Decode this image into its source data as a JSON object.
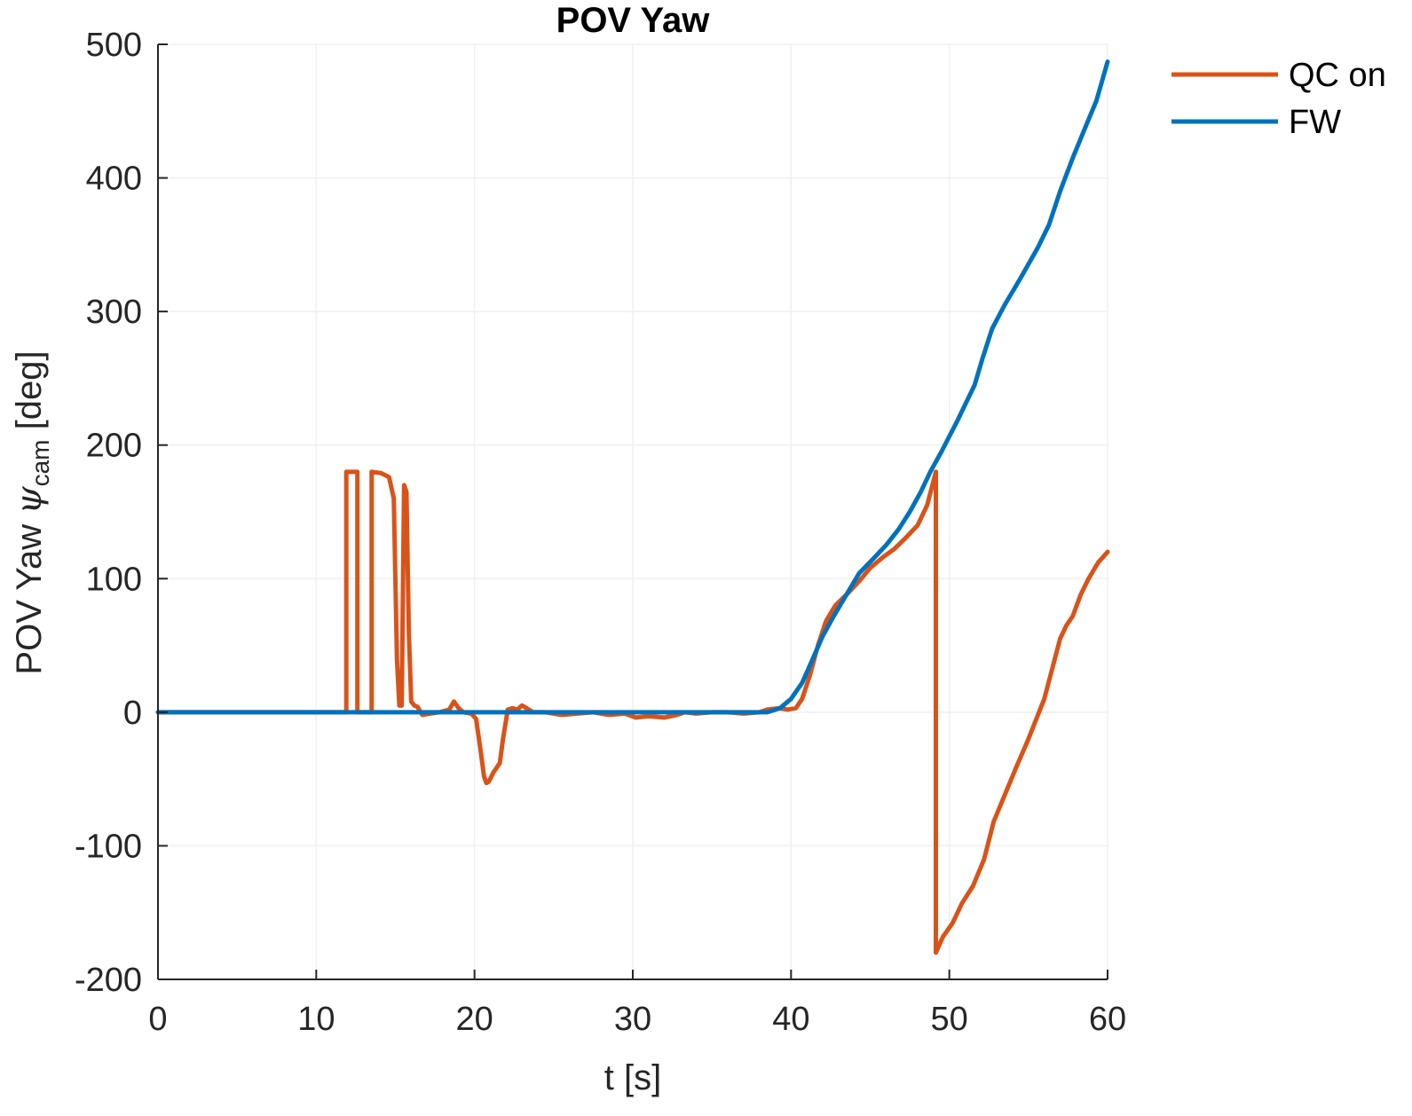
{
  "chart_data": {
    "type": "line",
    "title": "POV Yaw",
    "xlabel": "t [s]",
    "ylabel": {
      "prefix": "POV Yaw ",
      "symbol": "ψ",
      "subscript": "cam",
      "suffix": " [deg]"
    },
    "xlim": [
      0,
      60
    ],
    "ylim": [
      -200,
      500
    ],
    "x_ticks": [
      0,
      10,
      20,
      30,
      40,
      50,
      60
    ],
    "y_ticks": [
      -200,
      -100,
      0,
      100,
      200,
      300,
      400,
      500
    ],
    "grid": true,
    "legend_position": "top-right, outside",
    "series": [
      {
        "name": "QC on",
        "color": "#D95319",
        "points": [
          [
            0,
            0
          ],
          [
            11.9,
            0
          ],
          [
            11.9,
            180
          ],
          [
            12.6,
            180
          ],
          [
            12.6,
            0
          ],
          [
            13.5,
            0
          ],
          [
            13.5,
            180
          ],
          [
            14.1,
            179
          ],
          [
            14.6,
            176
          ],
          [
            14.9,
            160
          ],
          [
            15.1,
            40
          ],
          [
            15.25,
            5
          ],
          [
            15.4,
            5
          ],
          [
            15.55,
            170
          ],
          [
            15.7,
            165
          ],
          [
            15.85,
            60
          ],
          [
            16.0,
            8
          ],
          [
            16.2,
            5
          ],
          [
            16.4,
            4
          ],
          [
            16.7,
            -2
          ],
          [
            17.2,
            -1
          ],
          [
            17.8,
            0
          ],
          [
            18.4,
            2
          ],
          [
            18.7,
            8
          ],
          [
            19.0,
            3
          ],
          [
            19.3,
            0
          ],
          [
            19.8,
            -1
          ],
          [
            20.1,
            -5
          ],
          [
            20.4,
            -30
          ],
          [
            20.6,
            -48
          ],
          [
            20.75,
            -53
          ],
          [
            20.9,
            -52
          ],
          [
            21.2,
            -45
          ],
          [
            21.6,
            -38
          ],
          [
            21.8,
            -20
          ],
          [
            22.1,
            2
          ],
          [
            22.4,
            3
          ],
          [
            22.7,
            2
          ],
          [
            23.0,
            5
          ],
          [
            23.3,
            3
          ],
          [
            23.7,
            0
          ],
          [
            24.5,
            0
          ],
          [
            25.5,
            -2
          ],
          [
            26.5,
            -1
          ],
          [
            27.5,
            0
          ],
          [
            28.5,
            -2
          ],
          [
            29.5,
            -1
          ],
          [
            30.2,
            -4
          ],
          [
            31.0,
            -3
          ],
          [
            32.0,
            -4
          ],
          [
            32.8,
            -2
          ],
          [
            33.3,
            0
          ],
          [
            34.0,
            -1
          ],
          [
            35.0,
            0
          ],
          [
            36.0,
            0
          ],
          [
            37.0,
            -1
          ],
          [
            38.0,
            0
          ],
          [
            38.5,
            2
          ],
          [
            39.2,
            3
          ],
          [
            39.8,
            2
          ],
          [
            40.3,
            3
          ],
          [
            40.7,
            10
          ],
          [
            41.2,
            28
          ],
          [
            41.7,
            50
          ],
          [
            42.2,
            68
          ],
          [
            42.8,
            80
          ],
          [
            43.5,
            88
          ],
          [
            44.3,
            98
          ],
          [
            45.0,
            108
          ],
          [
            45.8,
            116
          ],
          [
            46.5,
            122
          ],
          [
            47.2,
            130
          ],
          [
            48.0,
            140
          ],
          [
            48.6,
            155
          ],
          [
            49.15,
            180
          ],
          [
            49.15,
            -180
          ],
          [
            49.6,
            -168
          ],
          [
            50.2,
            -158
          ],
          [
            50.8,
            -143
          ],
          [
            51.5,
            -130
          ],
          [
            52.2,
            -110
          ],
          [
            52.8,
            -82
          ],
          [
            53.5,
            -62
          ],
          [
            54.2,
            -42
          ],
          [
            55.0,
            -20
          ],
          [
            56.0,
            10
          ],
          [
            57.0,
            55
          ],
          [
            57.4,
            65
          ],
          [
            57.8,
            72
          ],
          [
            58.3,
            88
          ],
          [
            58.8,
            100
          ],
          [
            59.4,
            112
          ],
          [
            60.0,
            120
          ]
        ]
      },
      {
        "name": "FW",
        "color": "#0072BD",
        "points": [
          [
            0,
            0
          ],
          [
            10,
            0
          ],
          [
            20,
            0
          ],
          [
            30,
            0
          ],
          [
            38.5,
            0
          ],
          [
            39.3,
            3
          ],
          [
            40.0,
            10
          ],
          [
            40.7,
            22
          ],
          [
            41.3,
            38
          ],
          [
            42.0,
            57
          ],
          [
            42.7,
            72
          ],
          [
            43.5,
            88
          ],
          [
            44.3,
            104
          ],
          [
            45.2,
            115
          ],
          [
            46.0,
            125
          ],
          [
            46.8,
            137
          ],
          [
            47.5,
            150
          ],
          [
            48.2,
            165
          ],
          [
            48.8,
            180
          ],
          [
            49.5,
            195
          ],
          [
            50.5,
            218
          ],
          [
            51.6,
            245
          ],
          [
            52.1,
            265
          ],
          [
            52.7,
            287
          ],
          [
            53.5,
            305
          ],
          [
            54.5,
            325
          ],
          [
            55.6,
            348
          ],
          [
            56.3,
            365
          ],
          [
            57.0,
            390
          ],
          [
            57.8,
            415
          ],
          [
            58.6,
            438
          ],
          [
            59.3,
            458
          ],
          [
            60.0,
            487
          ]
        ]
      }
    ]
  }
}
